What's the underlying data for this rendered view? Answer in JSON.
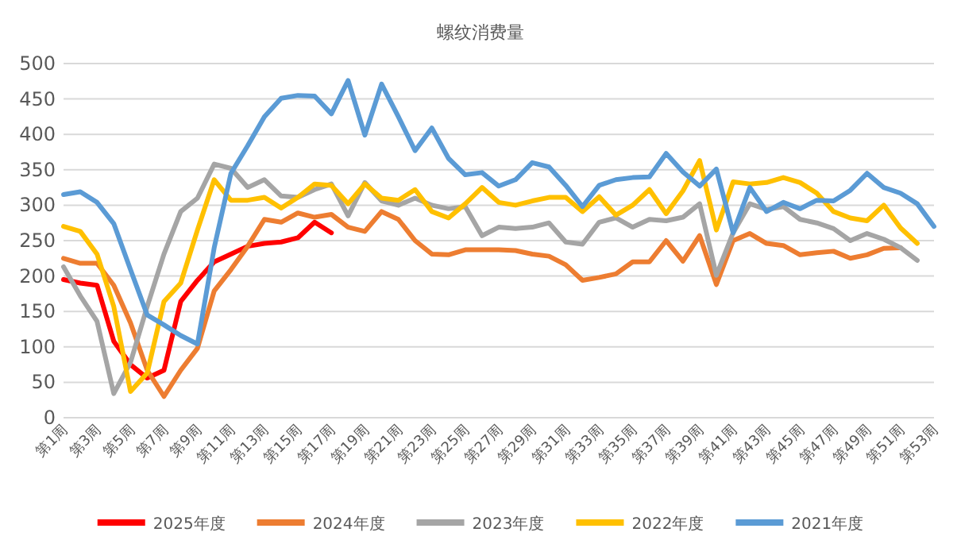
{
  "chart_data": {
    "type": "line",
    "title": "螺纹消费量",
    "categories": [
      "第1周",
      null,
      "第3周",
      null,
      "第5周",
      null,
      "第7周",
      null,
      "第9周",
      null,
      "第11周",
      null,
      "第13周",
      null,
      "第15周",
      null,
      "第17周",
      null,
      "第19周",
      null,
      "第21周",
      null,
      "第23周",
      null,
      "第25周",
      null,
      "第27周",
      null,
      "第29周",
      null,
      "第31周",
      null,
      "第33周",
      null,
      "第35周",
      null,
      "第37周",
      null,
      "第39周",
      null,
      "第41周",
      null,
      "第43周",
      null,
      "第45周",
      null,
      "第47周",
      null,
      "第49周",
      null,
      "第51周",
      null,
      "第53周"
    ],
    "series": [
      {
        "name": "2025年度",
        "color": "#ff0000",
        "values": [
          195,
          190,
          187,
          108,
          75,
          56,
          67,
          164,
          194,
          220,
          231,
          242,
          246,
          248,
          254,
          276,
          261,
          null,
          null,
          null,
          null,
          null,
          null,
          null,
          null,
          null,
          null,
          null,
          null,
          null,
          null,
          null,
          null,
          null,
          null,
          null,
          null,
          null,
          null,
          null,
          null,
          null,
          null,
          null,
          null,
          null,
          null,
          null,
          null,
          null,
          null,
          null,
          null
        ]
      },
      {
        "name": "2024年度",
        "color": "#ed7d31",
        "values": [
          225,
          218,
          218,
          187,
          134,
          67,
          30,
          67,
          98,
          179,
          209,
          242,
          280,
          276,
          289,
          283,
          287,
          269,
          263,
          291,
          280,
          250,
          231,
          230,
          237,
          237,
          237,
          236,
          231,
          228,
          216,
          194,
          198,
          203,
          220,
          220,
          250,
          221,
          257,
          188,
          250,
          260,
          246,
          243,
          230,
          233,
          235,
          225,
          230,
          239,
          240,
          null,
          null
        ]
      },
      {
        "name": "2023年度",
        "color": "#a5a5a5",
        "values": [
          213,
          172,
          136,
          34,
          78,
          157,
          231,
          291,
          310,
          358,
          352,
          325,
          336,
          313,
          311,
          322,
          330,
          285,
          332,
          306,
          300,
          310,
          300,
          295,
          298,
          257,
          269,
          267,
          269,
          275,
          248,
          245,
          276,
          282,
          269,
          280,
          278,
          283,
          302,
          201,
          261,
          302,
          294,
          298,
          280,
          275,
          267,
          250,
          260,
          252,
          240,
          222,
          null
        ]
      },
      {
        "name": "2022年度",
        "color": "#ffc000",
        "values": [
          270,
          263,
          231,
          157,
          37,
          63,
          164,
          190,
          265,
          336,
          307,
          307,
          311,
          296,
          311,
          330,
          328,
          302,
          330,
          310,
          307,
          322,
          291,
          282,
          302,
          325,
          304,
          300,
          306,
          311,
          311,
          291,
          312,
          286,
          300,
          322,
          288,
          320,
          363,
          265,
          333,
          330,
          332,
          339,
          332,
          317,
          291,
          282,
          278,
          300,
          268,
          246,
          null
        ]
      },
      {
        "name": "2021年度",
        "color": "#5b9bd5",
        "values": [
          315,
          319,
          304,
          274,
          209,
          145,
          131,
          116,
          104,
          240,
          345,
          384,
          425,
          451,
          455,
          454,
          429,
          476,
          399,
          471,
          425,
          377,
          409,
          366,
          343,
          346,
          327,
          336,
          360,
          354,
          328,
          298,
          328,
          336,
          339,
          340,
          373,
          347,
          327,
          351,
          261,
          325,
          291,
          304,
          295,
          307,
          306,
          321,
          345,
          325,
          317,
          302,
          270
        ]
      }
    ],
    "ylim": [
      0,
      500
    ],
    "yticks": [
      0,
      50,
      100,
      150,
      200,
      250,
      300,
      350,
      400,
      450,
      500
    ],
    "grid": "y",
    "legend": "bottom",
    "marker": "none",
    "line_style": "solid"
  }
}
